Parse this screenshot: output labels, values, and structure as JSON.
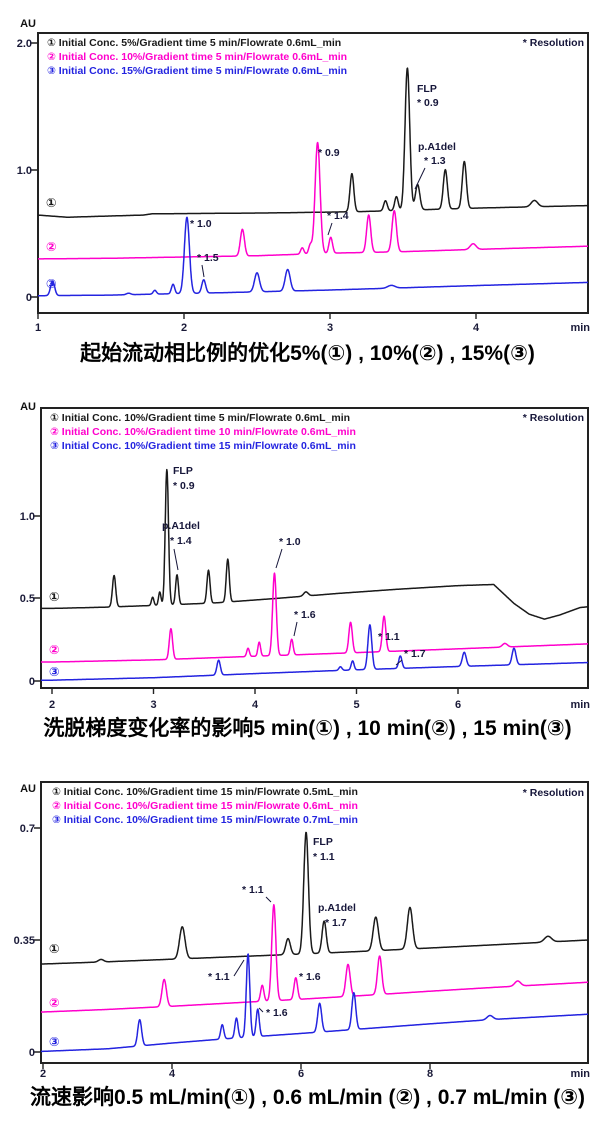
{
  "colors": {
    "series1": "#1a1a1a",
    "series2": "#ff00cc",
    "series3": "#2424e0",
    "annotation_text": "#16163a"
  },
  "chart_data": [
    {
      "type": "line",
      "title": "起始流动相比例的优化5%(①) , 10%(②) , 15%(③)",
      "ylabel": "AU",
      "x_unit": "min",
      "note": "* Resolution",
      "xlim": [
        1,
        4.77
      ],
      "ylim": [
        0,
        2.08
      ],
      "xtick_labels": [
        "1",
        "2",
        "3",
        "4"
      ],
      "ytick_labels": [
        "2.0",
        "1.0",
        "0"
      ],
      "series": [
        {
          "marker": "①",
          "name": "① Initial Conc. 5%/Gradient time 5 min/Flowrate 0.6mL_min",
          "color": "#1a1a1a",
          "baseline_au": [
            [
              1,
              0.645
            ],
            [
              1.2,
              0.628
            ],
            [
              1.5,
              0.638
            ],
            [
              1.72,
              0.645
            ],
            [
              1.78,
              0.655
            ],
            [
              2.6,
              0.662
            ],
            [
              3.2,
              0.672
            ],
            [
              4,
              0.7
            ],
            [
              4.77,
              0.72
            ]
          ],
          "peaks_t_h_sigma": [
            [
              3.15,
              0.3,
              0.013
            ],
            [
              3.38,
              0.08,
              0.012
            ],
            [
              3.455,
              0.11,
              0.012
            ],
            [
              3.53,
              1.12,
              0.016
            ],
            [
              3.6,
              0.2,
              0.015
            ],
            [
              3.79,
              0.31,
              0.014
            ],
            [
              3.92,
              0.37,
              0.014
            ],
            [
              4.4,
              0.05,
              0.022
            ]
          ]
        },
        {
          "marker": "②",
          "name": "② Initial Conc. 10%/Gradient time 5 min/Flowrate 0.6mL_min",
          "color": "#ff00cc",
          "baseline_au": [
            [
              1,
              0.3
            ],
            [
              1.5,
              0.305
            ],
            [
              2,
              0.315
            ],
            [
              2.5,
              0.325
            ],
            [
              3,
              0.345
            ],
            [
              3.5,
              0.357
            ],
            [
              4,
              0.375
            ],
            [
              4.77,
              0.4
            ]
          ],
          "peaks_t_h_sigma": [
            [
              2.4,
              0.21,
              0.014
            ],
            [
              2.81,
              0.05,
              0.011
            ],
            [
              2.865,
              0.07,
              0.011
            ],
            [
              2.915,
              0.875,
              0.017
            ],
            [
              3.005,
              0.125,
              0.012
            ],
            [
              3.265,
              0.295,
              0.014
            ],
            [
              3.44,
              0.325,
              0.015
            ],
            [
              3.98,
              0.045,
              0.02
            ]
          ]
        },
        {
          "marker": "③",
          "name": "③ Initial Conc. 15%/Gradient time 5 min/Flowrate 0.6mL_min",
          "color": "#2424e0",
          "baseline_au": [
            [
              1,
              0.01
            ],
            [
              1.5,
              0.015
            ],
            [
              2.3,
              0.035
            ],
            [
              3,
              0.055
            ],
            [
              4,
              0.09
            ],
            [
              4.77,
              0.115
            ]
          ],
          "peaks_t_h_sigma": [
            [
              1.1,
              0.115,
              0.014
            ],
            [
              1.62,
              0.012,
              0.015
            ],
            [
              1.8,
              0.03,
              0.011
            ],
            [
              1.925,
              0.075,
              0.011
            ],
            [
              2.02,
              0.6,
              0.017
            ],
            [
              2.135,
              0.105,
              0.013
            ],
            [
              2.5,
              0.15,
              0.017
            ],
            [
              2.71,
              0.17,
              0.017
            ],
            [
              3.42,
              0.022,
              0.025
            ]
          ]
        }
      ],
      "annotations": [
        {
          "peak": "FLP",
          "res": "* 0.9",
          "series": "①",
          "t_min": 3.53
        },
        {
          "peak": "p.A1del",
          "res": "* 1.3",
          "series": "①",
          "t_min": 3.6
        },
        {
          "res": "* 0.9",
          "series": "②",
          "t_min": 2.92
        },
        {
          "res": "* 1.4",
          "series": "②",
          "t_min": 3.0
        },
        {
          "res": "* 1.0",
          "series": "③",
          "t_min": 2.02
        },
        {
          "res": "* 1.5",
          "series": "③",
          "t_min": 2.14
        }
      ]
    },
    {
      "type": "line",
      "title": "洗脱梯度变化率的影响5 min(①) , 10 min(②) , 15 min(③)",
      "ylabel": "AU",
      "x_unit": "min",
      "note": "* Resolution",
      "xlim": [
        1.89,
        7.28
      ],
      "ylim": [
        0,
        1.65
      ],
      "xtick_labels": [
        "2",
        "3",
        "4",
        "5",
        "6"
      ],
      "ytick_labels": [
        "1.0",
        "0.5",
        "0"
      ],
      "series": [
        {
          "marker": "①",
          "name": "① Initial Conc. 10%/Gradient time 5 min/Flowrate 0.6mL_min",
          "color": "#1a1a1a",
          "baseline_au": [
            [
              2,
              0.44
            ],
            [
              2.5,
              0.447
            ],
            [
              3,
              0.458
            ],
            [
              3.6,
              0.473
            ],
            [
              4.2,
              0.5
            ],
            [
              4.8,
              0.53
            ],
            [
              5.4,
              0.556
            ],
            [
              6.0,
              0.578
            ],
            [
              6.35,
              0.585
            ],
            [
              6.55,
              0.47
            ],
            [
              6.7,
              0.405
            ],
            [
              6.85,
              0.375
            ],
            [
              7.0,
              0.4
            ],
            [
              7.2,
              0.445
            ],
            [
              7.28,
              0.45
            ]
          ],
          "peaks_t_h_sigma": [
            [
              2.61,
              0.19,
              0.016
            ],
            [
              2.99,
              0.05,
              0.012
            ],
            [
              3.06,
              0.08,
              0.012
            ],
            [
              3.13,
              0.82,
              0.016
            ],
            [
              3.23,
              0.18,
              0.014
            ],
            [
              3.54,
              0.2,
              0.015
            ],
            [
              3.73,
              0.26,
              0.015
            ],
            [
              4.5,
              0.025,
              0.022
            ]
          ]
        },
        {
          "marker": "②",
          "name": "② Initial Conc. 10%/Gradient time 10 min/Flowrate 0.6mL_min",
          "color": "#ff00cc",
          "baseline_au": [
            [
              2,
              0.115
            ],
            [
              3,
              0.128
            ],
            [
              4,
              0.15
            ],
            [
              5,
              0.172
            ],
            [
              6,
              0.195
            ],
            [
              7.28,
              0.225
            ]
          ],
          "peaks_t_h_sigma": [
            [
              3.17,
              0.185,
              0.016
            ],
            [
              3.93,
              0.05,
              0.013
            ],
            [
              4.04,
              0.085,
              0.013
            ],
            [
              4.19,
              0.5,
              0.018
            ],
            [
              4.36,
              0.095,
              0.014
            ],
            [
              4.94,
              0.185,
              0.017
            ],
            [
              5.27,
              0.215,
              0.017
            ],
            [
              6.46,
              0.022,
              0.024
            ]
          ]
        },
        {
          "marker": "③",
          "name": "③ Initial Conc. 10%/Gradient time 15 min/Flowrate 0.6mL_min",
          "color": "#2424e0",
          "baseline_au": [
            [
              2,
              0.005
            ],
            [
              3,
              0.02
            ],
            [
              4,
              0.045
            ],
            [
              5,
              0.068
            ],
            [
              6,
              0.088
            ],
            [
              7.28,
              0.112
            ]
          ],
          "peaks_t_h_sigma": [
            [
              3.64,
              0.09,
              0.017
            ],
            [
              4.84,
              0.022,
              0.015
            ],
            [
              4.96,
              0.055,
              0.014
            ],
            [
              5.13,
              0.27,
              0.019
            ],
            [
              5.43,
              0.075,
              0.016
            ],
            [
              6.06,
              0.085,
              0.019
            ],
            [
              6.55,
              0.1,
              0.019
            ]
          ]
        }
      ],
      "annotations": [
        {
          "peak": "FLP",
          "res": "* 0.9",
          "series": "①",
          "t_min": 3.13
        },
        {
          "peak": "p.A1del",
          "res": "* 1.4",
          "series": "①",
          "t_min": 3.23
        },
        {
          "res": "* 1.0",
          "series": "②",
          "t_min": 4.19
        },
        {
          "res": "* 1.6",
          "series": "②",
          "t_min": 4.36
        },
        {
          "res": "* 1.1",
          "series": "③",
          "t_min": 5.13
        },
        {
          "res": "* 1.7",
          "series": "③",
          "t_min": 5.43
        }
      ]
    },
    {
      "type": "line",
      "title": "流速影响0.5 mL/min(①) , 0.6 mL/min (②) , 0.7 mL/min (③)",
      "ylabel": "AU",
      "x_unit": "min",
      "note": "* Resolution",
      "xlim": [
        1.97,
        10.45
      ],
      "ylim": [
        0,
        0.84
      ],
      "xtick_labels": [
        "2",
        "4",
        "6",
        "8"
      ],
      "ytick_labels": [
        "0.7",
        "0.35",
        "0"
      ],
      "series": [
        {
          "marker": "①",
          "name": "① Initial Conc. 10%/Gradient time 15 min/Flowrate 0.5mL_min",
          "color": "#1a1a1a",
          "baseline_au": [
            [
              2,
              0.275
            ],
            [
              3,
              0.282
            ],
            [
              4,
              0.29
            ],
            [
              5,
              0.298
            ],
            [
              6,
              0.306
            ],
            [
              7,
              0.315
            ],
            [
              8,
              0.325
            ],
            [
              9,
              0.335
            ],
            [
              10.45,
              0.35
            ]
          ],
          "peaks_t_h_sigma": [
            [
              2.9,
              0.008,
              0.04
            ],
            [
              4.16,
              0.1,
              0.042
            ],
            [
              5.8,
              0.05,
              0.035
            ],
            [
              6.08,
              0.38,
              0.036
            ],
            [
              6.36,
              0.1,
              0.032
            ],
            [
              7.16,
              0.105,
              0.04
            ],
            [
              7.69,
              0.13,
              0.04
            ],
            [
              9.83,
              0.018,
              0.055
            ]
          ]
        },
        {
          "marker": "②",
          "name": "② Initial Conc. 10%/Gradient time 15 min/Flowrate 0.6mL_min",
          "color": "#ff00cc",
          "baseline_au": [
            [
              2,
              0.125
            ],
            [
              3,
              0.133
            ],
            [
              4,
              0.143
            ],
            [
              5,
              0.154
            ],
            [
              6,
              0.165
            ],
            [
              7,
              0.177
            ],
            [
              8,
              0.19
            ],
            [
              9,
              0.202
            ],
            [
              10.45,
              0.218
            ]
          ],
          "peaks_t_h_sigma": [
            [
              3.88,
              0.085,
              0.034
            ],
            [
              5.4,
              0.05,
              0.025
            ],
            [
              5.58,
              0.3,
              0.032
            ],
            [
              5.92,
              0.068,
              0.027
            ],
            [
              6.73,
              0.1,
              0.033
            ],
            [
              7.22,
              0.12,
              0.033
            ],
            [
              9.36,
              0.016,
              0.045
            ]
          ]
        },
        {
          "marker": "③",
          "name": "③ Initial Conc. 10%/Gradient time 15 min/Flowrate 0.7mL_min",
          "color": "#2424e0",
          "baseline_au": [
            [
              2,
              0.002
            ],
            [
              3,
              0.01
            ],
            [
              4,
              0.028
            ],
            [
              5,
              0.044
            ],
            [
              6,
              0.058
            ],
            [
              7,
              0.073
            ],
            [
              8,
              0.088
            ],
            [
              9,
              0.102
            ],
            [
              10.45,
              0.118
            ]
          ],
          "peaks_t_h_sigma": [
            [
              3.5,
              0.082,
              0.03
            ],
            [
              4.78,
              0.045,
              0.024
            ],
            [
              5.0,
              0.062,
              0.024
            ],
            [
              5.18,
              0.26,
              0.027
            ],
            [
              5.33,
              0.085,
              0.024
            ],
            [
              6.29,
              0.09,
              0.03
            ],
            [
              6.82,
              0.115,
              0.03
            ],
            [
              8.93,
              0.013,
              0.045
            ]
          ]
        }
      ],
      "annotations": [
        {
          "peak": "FLP",
          "res": "* 1.1",
          "series": "①",
          "t_min": 6.08
        },
        {
          "peak": "p.A1del",
          "res": "* 1.7",
          "series": "①",
          "t_min": 6.36
        },
        {
          "res": "* 1.1",
          "series": "②",
          "t_min": 5.58
        },
        {
          "res": "* 1.1",
          "series": "③",
          "t_min": 5.18
        },
        {
          "res": "* 1.6",
          "series": "②",
          "t_min": 5.92
        },
        {
          "res": "* 1.6",
          "series": "③",
          "t_min": 5.33
        }
      ]
    }
  ]
}
